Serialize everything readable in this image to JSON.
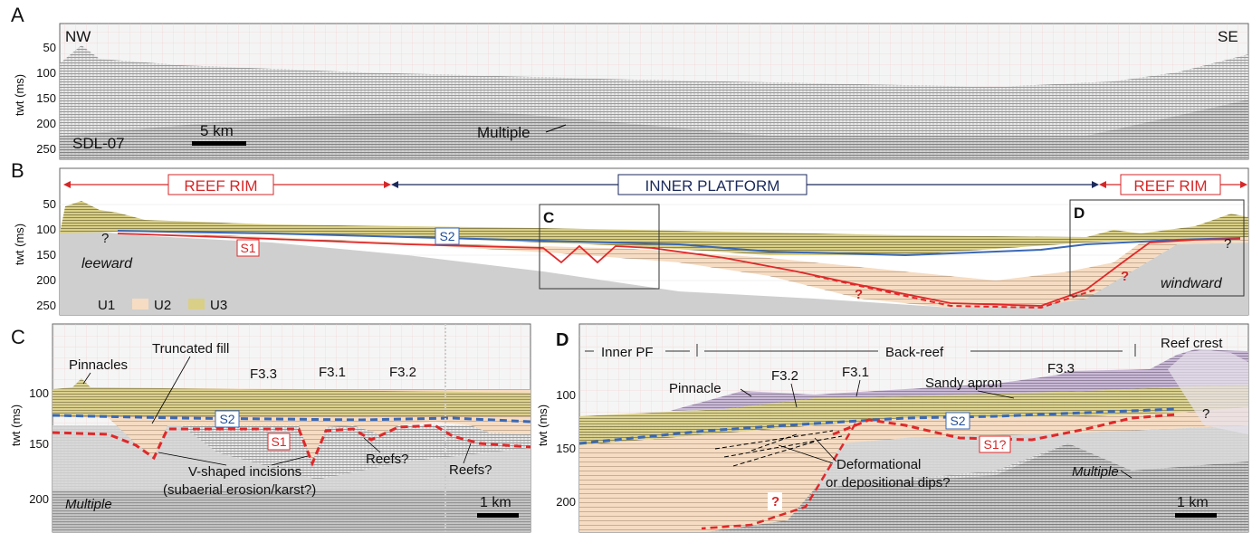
{
  "panelA": {
    "letter": "A",
    "ylabel": "twt (ms)",
    "ticks": [
      "50",
      "100",
      "150",
      "200",
      "250"
    ],
    "nw": "NW",
    "se": "SE",
    "line": "SDL-07",
    "scale": "5 km",
    "multiple": "Multiple"
  },
  "panelB": {
    "letter": "B",
    "ylabel": "twt (ms)",
    "ticks": [
      "50",
      "100",
      "150",
      "200",
      "250"
    ],
    "reef_rim_left": "REEF RIM",
    "inner_platform": "INNER PLATFORM",
    "reef_rim_right": "REEF RIM",
    "box_c": "C",
    "box_d": "D",
    "s1": "S1",
    "s2": "S2",
    "q1": "?",
    "q2": "?",
    "q3": "?",
    "q4": "?",
    "leeward": "leeward",
    "windward": "windward",
    "legend": [
      {
        "label": "U1",
        "color": "#cfcfcf"
      },
      {
        "label": "U2",
        "color": "#f6dcc2"
      },
      {
        "label": "U3",
        "color": "#d9cf86"
      }
    ]
  },
  "panelC": {
    "letter": "C",
    "ylabel": "twt (ms)",
    "ticks": [
      "100",
      "150",
      "200"
    ],
    "pinnacles": "Pinnacles",
    "truncated_fill": "Truncated fill",
    "f33": "F3.3",
    "f31": "F3.1",
    "f32": "F3.2",
    "s2": "S2",
    "s1": "S1",
    "vshaped1": "V-shaped incisions",
    "vshaped2": "(subaerial erosion/karst?)",
    "reefs1": "Reefs?",
    "reefs2": "Reefs?",
    "multiple": "Multiple",
    "scale": "1 km"
  },
  "panelD": {
    "letter": "D",
    "ylabel": "twt (ms)",
    "ticks": [
      "100",
      "150",
      "200"
    ],
    "inner_pf": "Inner PF",
    "back_reef": "Back-reef",
    "reef_crest": "Reef crest",
    "pinnacle": "Pinnacle",
    "f32": "F3.2",
    "f31": "F3.1",
    "sandy_apron": "Sandy apron",
    "f33": "F3.3",
    "s2": "S2",
    "s1": "S1?",
    "q1": "?",
    "q2": "?",
    "deform1": "Deformational",
    "deform2": "or depositional dips?",
    "multiple": "Multiple",
    "scale": "1 km"
  },
  "colors": {
    "u1": "#cfcfcf",
    "u2": "#f6dcc2",
    "u3": "#d9cf86",
    "u3_purple": "#c9b8d6",
    "s1": "#e0282a",
    "s2": "#3a68b5",
    "reef_rim": "#d62728",
    "inner_platform": "#1b2a5c"
  }
}
